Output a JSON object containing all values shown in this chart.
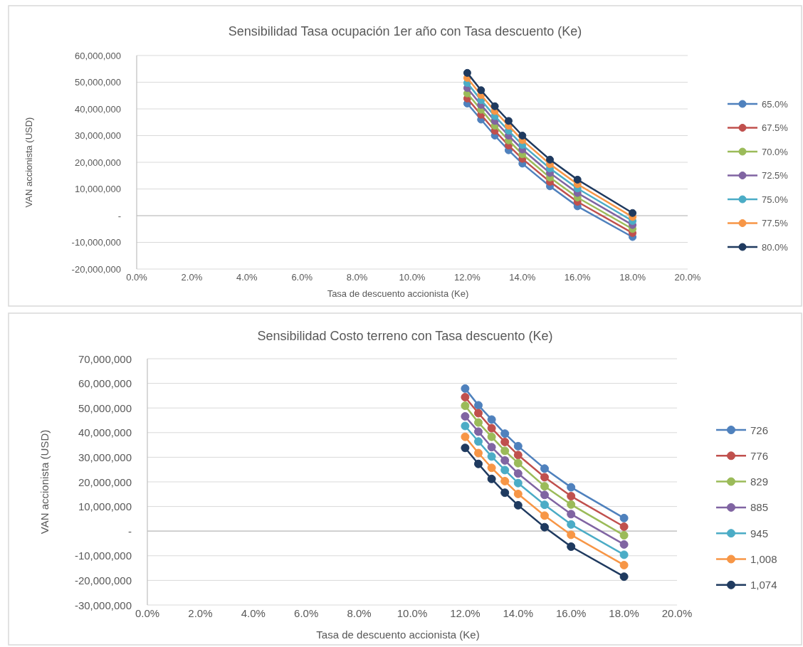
{
  "chart_data": [
    {
      "type": "line",
      "title": "Sensibilidad Tasa ocupación 1er año con Tasa descuento (Ke)",
      "xlabel": "Tasa de descuento accionista (Ke)",
      "ylabel": "VAN accionista (USD)",
      "x": [
        12,
        12.5,
        13,
        13.5,
        14,
        15,
        16,
        18
      ],
      "xlim": [
        0,
        20
      ],
      "xticks": [
        {
          "value": 0,
          "label": "0.0%"
        },
        {
          "value": 2,
          "label": "2.0%"
        },
        {
          "value": 4,
          "label": "4.0%"
        },
        {
          "value": 6,
          "label": "6.0%"
        },
        {
          "value": 8,
          "label": "8.0%"
        },
        {
          "value": 10,
          "label": "10.0%"
        },
        {
          "value": 12,
          "label": "12.0%"
        },
        {
          "value": 14,
          "label": "14.0%"
        },
        {
          "value": 16,
          "label": "16.0%"
        },
        {
          "value": 18,
          "label": "18.0%"
        },
        {
          "value": 20,
          "label": "20.0%"
        }
      ],
      "ylim": [
        -20000000,
        60000000
      ],
      "yticks": [
        {
          "value": -20000000,
          "label": "-20,000,000"
        },
        {
          "value": -10000000,
          "label": "-10,000,000"
        },
        {
          "value": 0,
          "label": "-"
        },
        {
          "value": 10000000,
          "label": "10,000,000"
        },
        {
          "value": 20000000,
          "label": "20,000,000"
        },
        {
          "value": 30000000,
          "label": "30,000,000"
        },
        {
          "value": 40000000,
          "label": "40,000,000"
        },
        {
          "value": 50000000,
          "label": "50,000,000"
        },
        {
          "value": 60000000,
          "label": "60,000,000"
        }
      ],
      "grid": "y",
      "legend": "right",
      "marker": "circle",
      "line_style": "solid",
      "series": [
        {
          "name": "65.0%",
          "color": "#4f81bd",
          "values": [
            42000000,
            36000000,
            30000000,
            24500000,
            19500000,
            11000000,
            3500000,
            -8000000
          ]
        },
        {
          "name": "67.5%",
          "color": "#c0504d",
          "values": [
            43900000,
            37800000,
            31800000,
            26300000,
            21300000,
            12700000,
            5200000,
            -6500000
          ]
        },
        {
          "name": "70.0%",
          "color": "#9bbb59",
          "values": [
            45800000,
            39700000,
            33700000,
            28200000,
            23000000,
            14300000,
            6800000,
            -5000000
          ]
        },
        {
          "name": "72.5%",
          "color": "#8064a2",
          "values": [
            47800000,
            41500000,
            35500000,
            30000000,
            24800000,
            16000000,
            8500000,
            -3500000
          ]
        },
        {
          "name": "75.0%",
          "color": "#4bacc6",
          "values": [
            49700000,
            43300000,
            37300000,
            31800000,
            26500000,
            17700000,
            10200000,
            -2000000
          ]
        },
        {
          "name": "77.5%",
          "color": "#f79646",
          "values": [
            51600000,
            45200000,
            39200000,
            33700000,
            28300000,
            19300000,
            11800000,
            -500000
          ]
        },
        {
          "name": "80.0%",
          "color": "#1f3a5f",
          "values": [
            53500000,
            47000000,
            41000000,
            35500000,
            30000000,
            21000000,
            13500000,
            1000000
          ]
        }
      ]
    },
    {
      "type": "line",
      "title": "Sensibilidad Costo terreno con Tasa descuento (Ke)",
      "xlabel": "Tasa de descuento accionista (Ke)",
      "ylabel": "VAN accionista (USD)",
      "x": [
        12,
        12.5,
        13,
        13.5,
        14,
        15,
        16,
        18
      ],
      "xlim": [
        0,
        20
      ],
      "xticks": [
        {
          "value": 0,
          "label": "0.0%"
        },
        {
          "value": 2,
          "label": "2.0%"
        },
        {
          "value": 4,
          "label": "4.0%"
        },
        {
          "value": 6,
          "label": "6.0%"
        },
        {
          "value": 8,
          "label": "8.0%"
        },
        {
          "value": 10,
          "label": "10.0%"
        },
        {
          "value": 12,
          "label": "12.0%"
        },
        {
          "value": 14,
          "label": "14.0%"
        },
        {
          "value": 16,
          "label": "16.0%"
        },
        {
          "value": 18,
          "label": "18.0%"
        },
        {
          "value": 20,
          "label": "20.0%"
        }
      ],
      "ylim": [
        -30000000,
        70000000
      ],
      "yticks": [
        {
          "value": -30000000,
          "label": "-30,000,000"
        },
        {
          "value": -20000000,
          "label": "-20,000,000"
        },
        {
          "value": -10000000,
          "label": "-10,000,000"
        },
        {
          "value": 0,
          "label": "-"
        },
        {
          "value": 10000000,
          "label": "10,000,000"
        },
        {
          "value": 20000000,
          "label": "20,000,000"
        },
        {
          "value": 30000000,
          "label": "30,000,000"
        },
        {
          "value": 40000000,
          "label": "40,000,000"
        },
        {
          "value": 50000000,
          "label": "50,000,000"
        },
        {
          "value": 60000000,
          "label": "60,000,000"
        },
        {
          "value": 70000000,
          "label": "70,000,000"
        }
      ],
      "grid": "y",
      "legend": "right",
      "marker": "circle",
      "line_style": "solid",
      "series": [
        {
          "name": "726",
          "color": "#4f81bd",
          "values": [
            57900000,
            51100000,
            45300000,
            39600000,
            34500000,
            25400000,
            17800000,
            5300000
          ]
        },
        {
          "name": "776",
          "color": "#c0504d",
          "values": [
            54400000,
            47900000,
            41800000,
            36200000,
            30900000,
            21900000,
            14200000,
            1800000
          ]
        },
        {
          "name": "829",
          "color": "#9bbb59",
          "values": [
            50900000,
            44100000,
            38300000,
            32600000,
            27600000,
            18200000,
            10800000,
            -1700000
          ]
        },
        {
          "name": "885",
          "color": "#8064a2",
          "values": [
            46600000,
            40400000,
            34100000,
            28700000,
            23400000,
            14700000,
            6900000,
            -5400000
          ]
        },
        {
          "name": "945",
          "color": "#4bacc6",
          "values": [
            42700000,
            36400000,
            30300000,
            24800000,
            19500000,
            10700000,
            2700000,
            -9600000
          ]
        },
        {
          "name": "1,008",
          "color": "#f79646",
          "values": [
            38300000,
            31700000,
            25700000,
            20300000,
            15100000,
            6300000,
            -1500000,
            -13800000
          ]
        },
        {
          "name": "1,074",
          "color": "#1f3a5f",
          "values": [
            33800000,
            27300000,
            21200000,
            15600000,
            10500000,
            1600000,
            -6300000,
            -18500000
          ]
        }
      ]
    }
  ]
}
